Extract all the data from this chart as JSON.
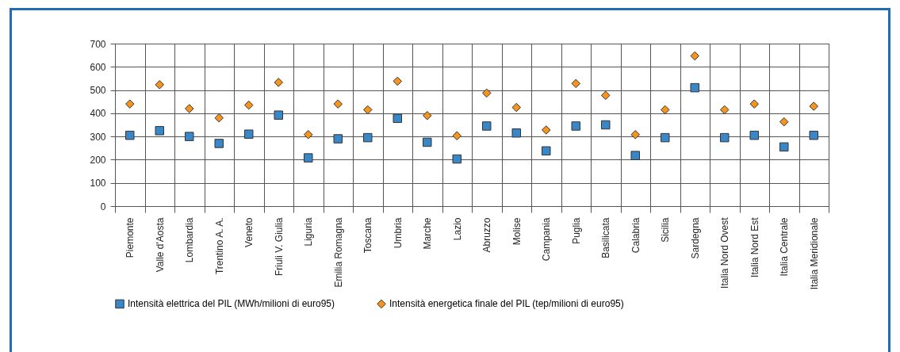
{
  "chart_data": {
    "type": "scatter",
    "categories": [
      "Piemonte",
      "Valle d'Aosta",
      "Lombardia",
      "Trentino A. A.",
      "Veneto",
      "Friuli V. Giulia",
      "Liguria",
      "Emilia Romagna",
      "Toscana",
      "Umbria",
      "Marche",
      "Lazio",
      "Abruzzo",
      "Molise",
      "Campania",
      "Puglia",
      "Basilicata",
      "Calabria",
      "Sicilia",
      "Sardegna",
      "Italia Nord Ovest",
      "Italia Nord Est",
      "Italia Centrale",
      "Italia Meridionale"
    ],
    "series": [
      {
        "name": "Intensità elettrica del PIL (MWh/milioni di euro95)",
        "color": "#3a87c8",
        "marker": "square",
        "values": [
          305,
          325,
          300,
          270,
          310,
          392,
          208,
          290,
          295,
          378,
          275,
          203,
          345,
          315,
          238,
          345,
          350,
          218,
          295,
          510,
          295,
          305,
          255,
          305
        ]
      },
      {
        "name": "Intensità energetica finale del PIL (tep/milioni di euro95)",
        "color": "#f7941d",
        "marker": "diamond",
        "values": [
          440,
          523,
          420,
          380,
          435,
          533,
          308,
          440,
          415,
          538,
          390,
          303,
          487,
          425,
          328,
          528,
          477,
          308,
          415,
          647,
          415,
          440,
          363,
          430
        ]
      }
    ],
    "ylim": [
      0,
      700
    ],
    "yticks": [
      0,
      100,
      200,
      300,
      400,
      500,
      600,
      700
    ],
    "grid": true,
    "legend": "bottom"
  }
}
